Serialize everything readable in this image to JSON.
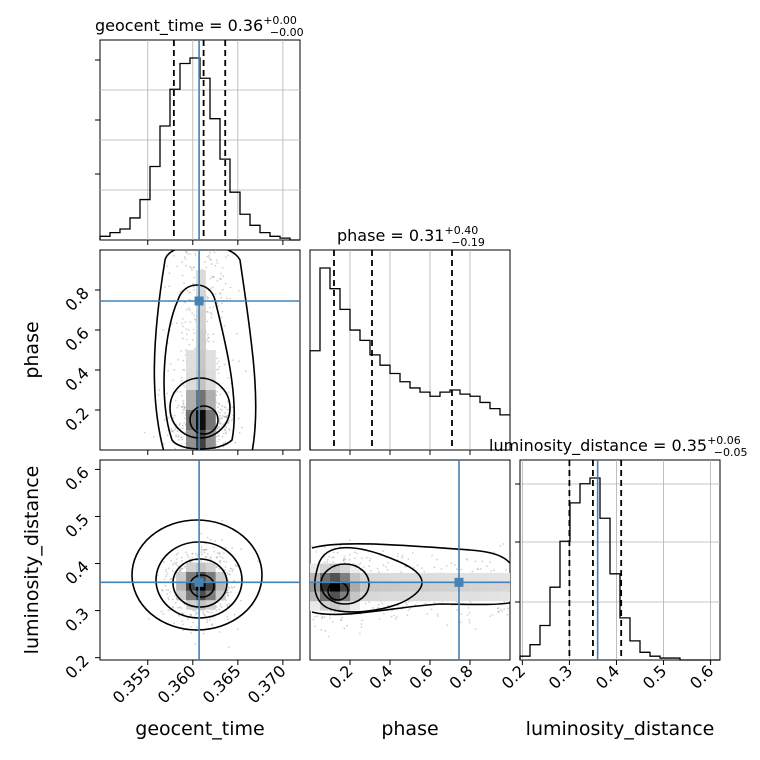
{
  "chart_data": {
    "type": "corner",
    "parameters": [
      "geocent_time",
      "phase",
      "luminosity_distance"
    ],
    "truths": {
      "geocent_time": 0.3607,
      "phase": 0.745,
      "luminosity_distance": 0.36
    },
    "titles": [
      {
        "param": "geocent_time",
        "label": "geocent_time",
        "median": "0.36",
        "plus": "+0.00",
        "minus": "−0.00"
      },
      {
        "param": "phase",
        "label": "phase",
        "median": "0.31",
        "plus": "+0.40",
        "minus": "−0.19"
      },
      {
        "param": "luminosity_distance",
        "label": "luminosity_distance",
        "median": "0.35",
        "plus": "+0.06",
        "minus": "−0.05"
      }
    ],
    "quantiles": {
      "geocent_time": [
        0.3579,
        0.3612,
        0.3636
      ],
      "phase": [
        0.12,
        0.31,
        0.71
      ],
      "luminosity_distance": [
        0.3,
        0.35,
        0.41
      ]
    },
    "ranges": {
      "geocent_time": [
        0.3497,
        0.3719
      ],
      "phase": [
        0.0,
        1.0
      ],
      "luminosity_distance": [
        0.195,
        0.62
      ]
    },
    "ticks": {
      "geocent_time": [
        "0.355",
        "0.360",
        "0.365",
        "0.370"
      ],
      "phase_y": [
        "0.2",
        "0.4",
        "0.6",
        "0.8"
      ],
      "phase_x": [
        "0.2",
        "0.4",
        "0.6",
        "0.8"
      ],
      "luminosity_distance_y": [
        "0.2",
        "0.3",
        "0.4",
        "0.5",
        "0.6"
      ],
      "luminosity_distance_x": [
        "0.2",
        "0.3",
        "0.4",
        "0.5",
        "0.6"
      ]
    },
    "histograms": {
      "geocent_time": {
        "edges_start": 0.3497,
        "bin_width": 0.00111,
        "counts": [
          2,
          4,
          6,
          12,
          22,
          40,
          62,
          82,
          96,
          99,
          88,
          66,
          44,
          26,
          14,
          8,
          4,
          2,
          1,
          0
        ]
      },
      "phase": {
        "edges_start": 0.0,
        "bin_width": 0.05,
        "counts": [
          48,
          88,
          78,
          68,
          58,
          53,
          46,
          41,
          37,
          33,
          30,
          28,
          26,
          28,
          29,
          27,
          26,
          23,
          20,
          17
        ]
      },
      "luminosity_distance": {
        "edges_start": 0.195,
        "bin_width": 0.02125,
        "counts": [
          2,
          8,
          18,
          38,
          62,
          82,
          92,
          95,
          74,
          45,
          22,
          10,
          4,
          2,
          1,
          1,
          0,
          0,
          0,
          0
        ]
      }
    },
    "colors": {
      "truth": "#4682b4",
      "line": "#000000",
      "grid": "#b0b0b0"
    },
    "grid": true
  }
}
